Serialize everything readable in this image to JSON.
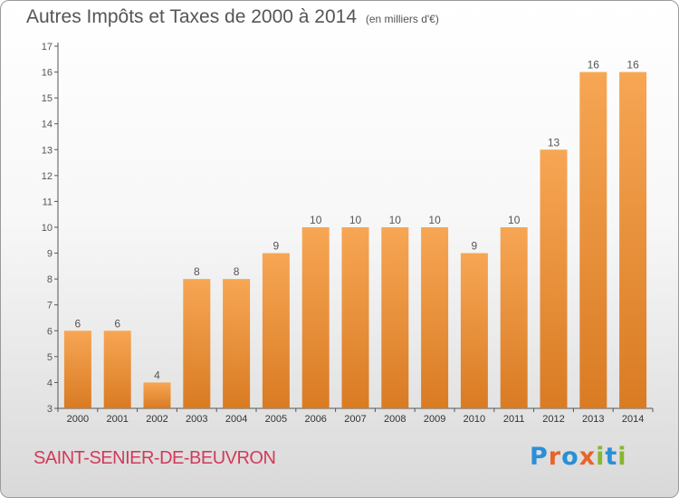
{
  "header": {
    "title": "Autres Impôts et Taxes de 2000 à 2014",
    "unit": "(en milliers d'€)"
  },
  "commune": "SAINT-SENIER-DE-BEUVRON",
  "logo": {
    "text": "Proxiti",
    "letters": [
      {
        "ch": "P",
        "color": "#2a8fd6"
      },
      {
        "ch": "r",
        "color": "#e8632a"
      },
      {
        "ch": "o",
        "color": "#2a8fd6"
      },
      {
        "ch": "x",
        "color": "#e8632a"
      },
      {
        "ch": "i",
        "color": "#86b82a"
      },
      {
        "ch": "t",
        "color": "#2a8fd6"
      },
      {
        "ch": "i",
        "color": "#86b82a"
      }
    ]
  },
  "colors": {
    "bar_top": "#f7a654",
    "bar_bottom": "#d97b23",
    "axis": "#555555",
    "text": "#555555"
  },
  "chart_data": {
    "type": "bar",
    "title": "Autres Impôts et Taxes de 2000 à 2014",
    "categories": [
      "2000",
      "2001",
      "2002",
      "2003",
      "2004",
      "2005",
      "2006",
      "2007",
      "2008",
      "2009",
      "2010",
      "2011",
      "2012",
      "2013",
      "2014"
    ],
    "values": [
      6,
      6,
      4,
      8,
      8,
      9,
      10,
      10,
      10,
      10,
      9,
      10,
      13,
      16,
      16
    ],
    "ylim": [
      3,
      17
    ],
    "yticks": [
      3,
      4,
      5,
      6,
      7,
      8,
      9,
      10,
      11,
      12,
      13,
      14,
      15,
      16,
      17
    ],
    "grid": false,
    "xlabel": "",
    "ylabel": ""
  }
}
